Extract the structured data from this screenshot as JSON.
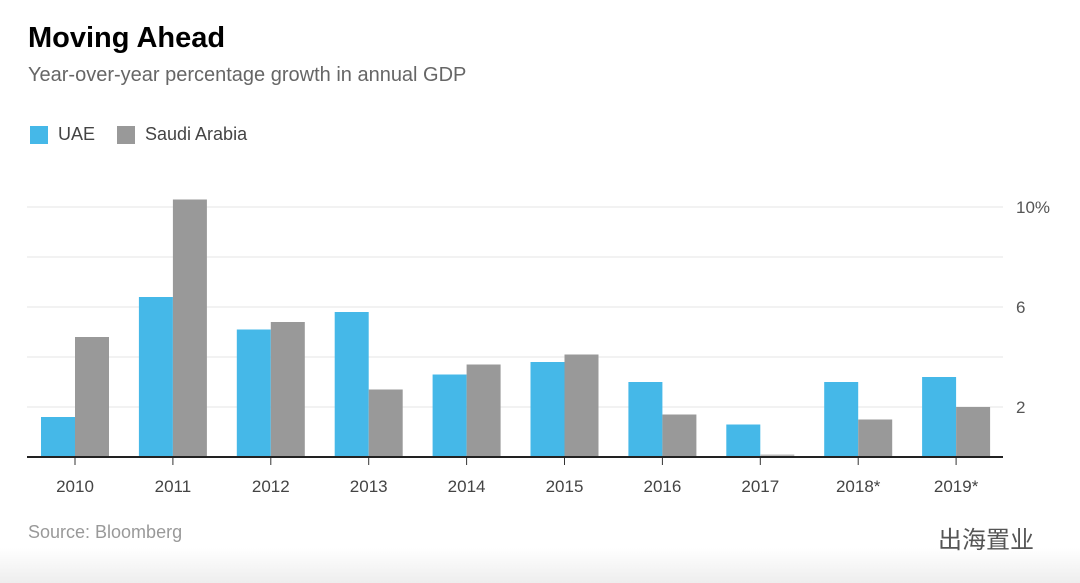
{
  "chart_data": {
    "type": "bar",
    "title": "Moving Ahead",
    "subtitle": "Year-over-year percentage growth in annual GDP",
    "categories": [
      "2010",
      "2011",
      "2012",
      "2013",
      "2014",
      "2015",
      "2016",
      "2017",
      "2018*",
      "2019*"
    ],
    "series": [
      {
        "name": "UAE",
        "color": "#45b8e8",
        "values": [
          1.6,
          6.4,
          5.1,
          5.8,
          3.3,
          3.8,
          3.0,
          1.3,
          3.0,
          3.2
        ]
      },
      {
        "name": "Saudi Arabia",
        "color": "#999999",
        "values": [
          4.8,
          10.3,
          5.4,
          2.7,
          3.7,
          4.1,
          1.7,
          0.1,
          1.5,
          2.0
        ]
      }
    ],
    "ylim": [
      0,
      10
    ],
    "yticks": [
      {
        "v": 2,
        "label": "2"
      },
      {
        "v": 6,
        "label": "6"
      },
      {
        "v": 10,
        "label": "10%"
      }
    ],
    "grid": true,
    "legend": "top-left",
    "source": "Source: Bloomberg"
  },
  "watermark": "出海置业"
}
